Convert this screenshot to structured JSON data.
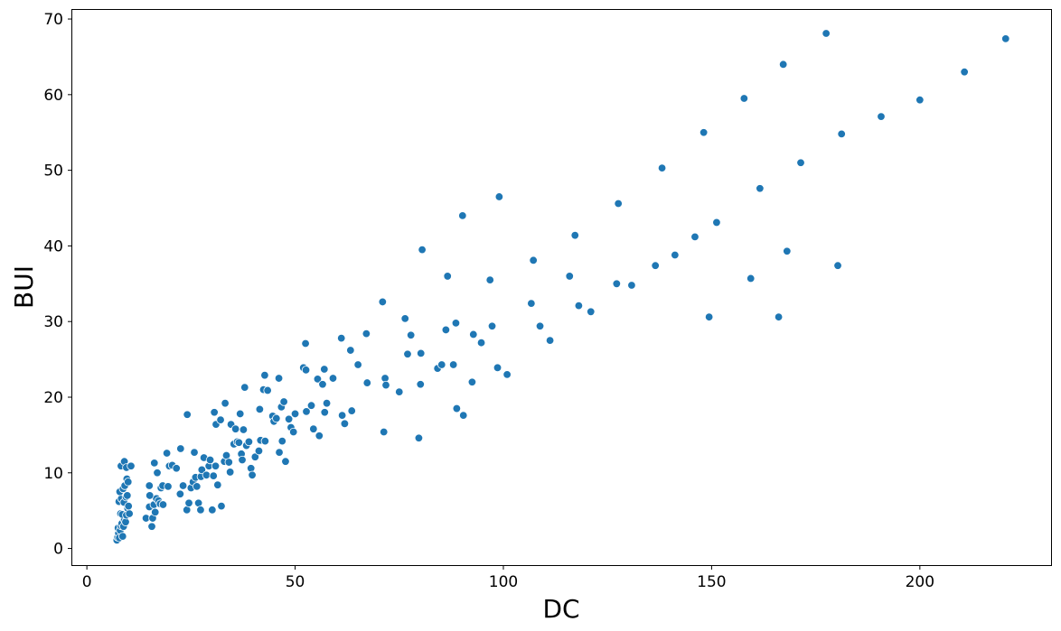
{
  "chart_data": {
    "type": "scatter",
    "title": "",
    "xlabel": "DC",
    "ylabel": "BUI",
    "xlim": [
      -3.5,
      231.5
    ],
    "ylim": [
      -2.2,
      71.2
    ],
    "xticks": [
      0,
      50,
      100,
      150,
      200
    ],
    "yticks": [
      0,
      10,
      20,
      30,
      40,
      50,
      60,
      70
    ],
    "grid": false,
    "legend": "none",
    "marker_color": "#1f77b4",
    "points": [
      [
        7.2,
        1.1
      ],
      [
        7.4,
        1.5
      ],
      [
        7.6,
        2.0
      ],
      [
        7.5,
        2.7
      ],
      [
        7.8,
        1.4
      ],
      [
        8.0,
        2.4
      ],
      [
        8.2,
        3.0
      ],
      [
        8.4,
        3.3
      ],
      [
        8.6,
        1.6
      ],
      [
        8.8,
        2.9
      ],
      [
        9.0,
        3.8
      ],
      [
        9.3,
        3.5
      ],
      [
        8.1,
        4.6
      ],
      [
        8.5,
        4.5
      ],
      [
        9.5,
        4.4
      ],
      [
        9.8,
        5.3
      ],
      [
        7.7,
        6.2
      ],
      [
        8.3,
        6.6
      ],
      [
        8.9,
        6.1
      ],
      [
        9.4,
        6.8
      ],
      [
        9.7,
        7.0
      ],
      [
        7.9,
        7.5
      ],
      [
        8.7,
        7.9
      ],
      [
        9.1,
        8.3
      ],
      [
        9.6,
        9.2
      ],
      [
        9.9,
        8.8
      ],
      [
        8.2,
        10.9
      ],
      [
        9.0,
        11.5
      ],
      [
        9.5,
        10.7
      ],
      [
        10.6,
        10.9
      ],
      [
        10.2,
        4.6
      ],
      [
        10.0,
        5.6
      ],
      [
        14.2,
        4.0
      ],
      [
        15.0,
        5.5
      ],
      [
        15.6,
        2.9
      ],
      [
        15.8,
        4.0
      ],
      [
        16.1,
        5.8
      ],
      [
        16.4,
        4.8
      ],
      [
        16.7,
        6.6
      ],
      [
        17.2,
        6.3
      ],
      [
        17.6,
        5.9
      ],
      [
        18.3,
        5.8
      ],
      [
        15.1,
        7.0
      ],
      [
        15.0,
        8.3
      ],
      [
        16.2,
        11.3
      ],
      [
        16.9,
        10.0
      ],
      [
        17.8,
        8.0
      ],
      [
        18.2,
        8.3
      ],
      [
        19.5,
        8.2
      ],
      [
        19.2,
        12.6
      ],
      [
        19.8,
        10.9
      ],
      [
        20.5,
        11.0
      ],
      [
        21.5,
        10.6
      ],
      [
        22.4,
        7.2
      ],
      [
        22.5,
        13.2
      ],
      [
        23.1,
        8.3
      ],
      [
        24.1,
        17.7
      ],
      [
        24.0,
        5.1
      ],
      [
        24.5,
        6.0
      ],
      [
        25.0,
        8.0
      ],
      [
        25.5,
        8.8
      ],
      [
        25.8,
        12.7
      ],
      [
        26.1,
        9.4
      ],
      [
        26.4,
        8.2
      ],
      [
        26.8,
        6.0
      ],
      [
        27.4,
        9.5
      ],
      [
        27.6,
        10.4
      ],
      [
        27.3,
        5.1
      ],
      [
        28.1,
        12.0
      ],
      [
        28.7,
        9.7
      ],
      [
        29.3,
        10.9
      ],
      [
        29.6,
        11.7
      ],
      [
        30.1,
        5.1
      ],
      [
        30.4,
        9.6
      ],
      [
        30.9,
        10.9
      ],
      [
        30.6,
        18.0
      ],
      [
        31.0,
        16.4
      ],
      [
        31.4,
        8.4
      ],
      [
        32.1,
        17.0
      ],
      [
        32.3,
        5.6
      ],
      [
        33.0,
        11.5
      ],
      [
        33.2,
        19.2
      ],
      [
        33.5,
        12.3
      ],
      [
        34.1,
        11.4
      ],
      [
        34.4,
        10.1
      ],
      [
        34.6,
        16.4
      ],
      [
        35.3,
        13.8
      ],
      [
        35.7,
        15.8
      ],
      [
        36.1,
        14.1
      ],
      [
        36.5,
        14.0
      ],
      [
        36.8,
        17.8
      ],
      [
        37.1,
        12.5
      ],
      [
        37.3,
        11.7
      ],
      [
        37.6,
        15.7
      ],
      [
        37.9,
        21.3
      ],
      [
        38.3,
        13.6
      ],
      [
        38.9,
        14.1
      ],
      [
        39.4,
        10.6
      ],
      [
        39.7,
        9.7
      ],
      [
        40.4,
        12.1
      ],
      [
        41.3,
        12.9
      ],
      [
        41.7,
        14.3
      ],
      [
        41.5,
        18.4
      ],
      [
        42.4,
        21.0
      ],
      [
        42.7,
        22.9
      ],
      [
        42.8,
        14.2
      ],
      [
        43.4,
        20.9
      ],
      [
        44.6,
        17.5
      ],
      [
        44.9,
        16.8
      ],
      [
        45.5,
        17.2
      ],
      [
        46.1,
        22.5
      ],
      [
        46.2,
        12.7
      ],
      [
        46.7,
        18.7
      ],
      [
        46.9,
        14.2
      ],
      [
        47.3,
        19.4
      ],
      [
        47.7,
        11.5
      ],
      [
        48.5,
        17.1
      ],
      [
        49.0,
        16.0
      ],
      [
        49.6,
        15.4
      ],
      [
        50.0,
        17.8
      ],
      [
        52.0,
        23.9
      ],
      [
        52.5,
        27.1
      ],
      [
        52.6,
        23.6
      ],
      [
        52.7,
        18.1
      ],
      [
        53.9,
        18.9
      ],
      [
        54.4,
        15.8
      ],
      [
        55.4,
        22.4
      ],
      [
        55.8,
        14.9
      ],
      [
        56.6,
        21.7
      ],
      [
        57.0,
        23.7
      ],
      [
        57.1,
        18.0
      ],
      [
        57.6,
        19.2
      ],
      [
        59.1,
        22.5
      ],
      [
        61.1,
        27.8
      ],
      [
        61.3,
        17.6
      ],
      [
        61.9,
        16.5
      ],
      [
        63.3,
        26.2
      ],
      [
        63.6,
        18.2
      ],
      [
        65.1,
        24.3
      ],
      [
        67.1,
        28.4
      ],
      [
        67.3,
        21.9
      ],
      [
        71.0,
        32.6
      ],
      [
        71.3,
        15.4
      ],
      [
        71.6,
        22.5
      ],
      [
        71.8,
        21.6
      ],
      [
        75.0,
        20.7
      ],
      [
        76.4,
        30.4
      ],
      [
        77.0,
        25.7
      ],
      [
        77.8,
        28.2
      ],
      [
        79.7,
        14.6
      ],
      [
        80.1,
        21.7
      ],
      [
        80.2,
        25.8
      ],
      [
        80.5,
        39.5
      ],
      [
        84.2,
        23.8
      ],
      [
        85.2,
        24.3
      ],
      [
        86.2,
        28.9
      ],
      [
        86.6,
        36.0
      ],
      [
        88.0,
        24.3
      ],
      [
        88.6,
        29.8
      ],
      [
        88.8,
        18.5
      ],
      [
        90.2,
        44.0
      ],
      [
        90.4,
        17.6
      ],
      [
        92.5,
        22.0
      ],
      [
        92.8,
        28.3
      ],
      [
        94.7,
        27.2
      ],
      [
        96.8,
        35.5
      ],
      [
        97.3,
        29.4
      ],
      [
        98.6,
        23.9
      ],
      [
        99.0,
        46.5
      ],
      [
        100.9,
        23.0
      ],
      [
        106.7,
        32.4
      ],
      [
        107.2,
        38.1
      ],
      [
        108.8,
        29.4
      ],
      [
        111.2,
        27.5
      ],
      [
        115.9,
        36.0
      ],
      [
        117.2,
        41.4
      ],
      [
        118.1,
        32.1
      ],
      [
        121.0,
        31.3
      ],
      [
        127.2,
        35.0
      ],
      [
        127.6,
        45.6
      ],
      [
        130.8,
        34.8
      ],
      [
        136.5,
        37.4
      ],
      [
        138.1,
        50.3
      ],
      [
        141.2,
        38.8
      ],
      [
        146.0,
        41.2
      ],
      [
        148.1,
        55.0
      ],
      [
        149.4,
        30.6
      ],
      [
        151.2,
        43.1
      ],
      [
        157.8,
        59.5
      ],
      [
        159.4,
        35.7
      ],
      [
        161.6,
        47.6
      ],
      [
        166.1,
        30.6
      ],
      [
        167.2,
        64.0
      ],
      [
        168.1,
        39.3
      ],
      [
        171.4,
        51.0
      ],
      [
        177.5,
        68.1
      ],
      [
        180.3,
        37.4
      ],
      [
        181.2,
        54.8
      ],
      [
        190.7,
        57.1
      ],
      [
        200.0,
        59.3
      ],
      [
        210.7,
        63.0
      ],
      [
        220.6,
        67.4
      ]
    ]
  }
}
